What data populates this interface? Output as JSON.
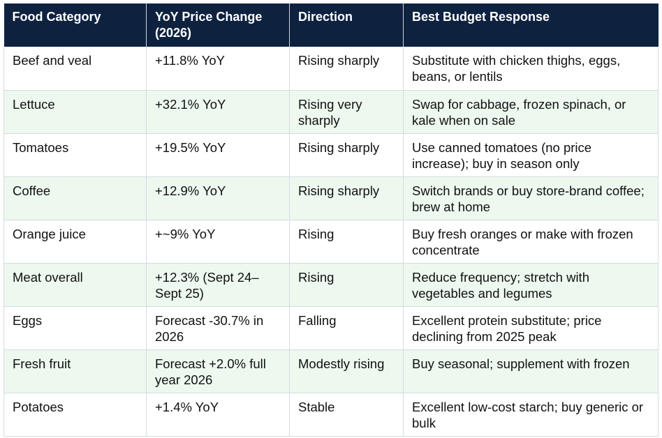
{
  "table": {
    "headers": [
      "Food Category",
      "YoY Price Change (2026)",
      "Direction",
      "Best Budget Response"
    ],
    "rows": [
      [
        "Beef and veal",
        "+11.8% YoY",
        "Rising sharply",
        "Substitute with chicken thighs, eggs, beans, or lentils"
      ],
      [
        "Lettuce",
        "+32.1% YoY",
        "Rising very sharply",
        "Swap for cabbage, frozen spinach, or kale when on sale"
      ],
      [
        "Tomatoes",
        "+19.5% YoY",
        "Rising sharply",
        "Use canned tomatoes (no price increase); buy in season only"
      ],
      [
        "Coffee",
        "+12.9% YoY",
        "Rising sharply",
        "Switch brands or buy store-brand coffee; brew at home"
      ],
      [
        "Orange juice",
        "+~9% YoY",
        "Rising",
        "Buy fresh oranges or make with frozen concentrate"
      ],
      [
        "Meat overall",
        "+12.3% (Sept 24–Sept 25)",
        "Rising",
        "Reduce frequency; stretch with vegetables and legumes"
      ],
      [
        "Eggs",
        "Forecast -30.7% in 2026",
        "Falling",
        "Excellent protein substitute; price declining from 2025 peak"
      ],
      [
        "Fresh fruit",
        "Forecast +2.0% full year 2026",
        "Modestly rising",
        "Buy seasonal; supplement with frozen"
      ],
      [
        "Potatoes",
        "+1.4% YoY",
        "Stable",
        "Excellent low-cost starch; buy generic or bulk"
      ]
    ]
  },
  "colors": {
    "header_bg": "#0e2240",
    "header_text": "#ffffff",
    "row_alt_bg": "#edf8ef",
    "border": "#d4dbe1"
  }
}
